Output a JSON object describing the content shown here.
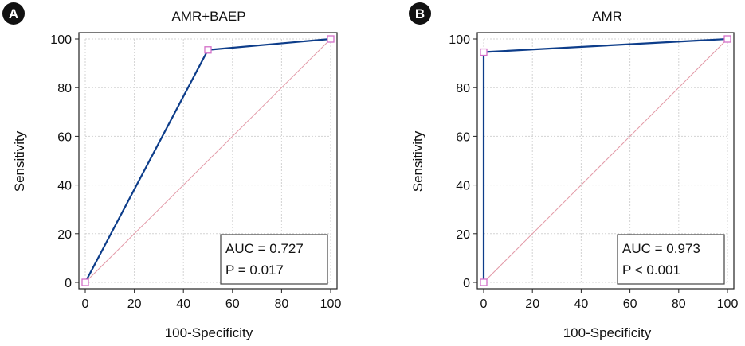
{
  "colors": {
    "roc_line": "#0d3d8a",
    "diagonal": "#e39aa8",
    "marker": "#d46fc8",
    "grid": "#d3d3d3",
    "axis": "#222222",
    "badge": "#111111"
  },
  "chart_data": [
    {
      "panel_label": "A",
      "type": "line",
      "title": "AMR+BAEP",
      "xlabel": "100-Specificity",
      "ylabel": "Sensitivity",
      "xlim": [
        0,
        100
      ],
      "ylim": [
        0,
        100
      ],
      "xticks": [
        "0",
        "20",
        "40",
        "60",
        "80",
        "100"
      ],
      "yticks": [
        "0",
        "20",
        "40",
        "60",
        "80",
        "100"
      ],
      "grid": true,
      "series": [
        {
          "name": "ROC",
          "x": [
            0,
            50,
            100
          ],
          "y": [
            0,
            95.5,
            100
          ]
        }
      ],
      "reference_line": {
        "x": [
          0,
          100
        ],
        "y": [
          0,
          100
        ]
      },
      "stats": {
        "auc": "AUC = 0.727",
        "p": "P = 0.017"
      },
      "stats_position": "bottom-right"
    },
    {
      "panel_label": "B",
      "type": "line",
      "title": "AMR",
      "xlabel": "100-Specificity",
      "ylabel": "Sensitivity",
      "xlim": [
        0,
        100
      ],
      "ylim": [
        0,
        100
      ],
      "xticks": [
        "0",
        "20",
        "40",
        "60",
        "80",
        "100"
      ],
      "yticks": [
        "0",
        "20",
        "40",
        "60",
        "80",
        "100"
      ],
      "grid": true,
      "series": [
        {
          "name": "ROC",
          "x": [
            0,
            0,
            100
          ],
          "y": [
            0,
            94.6,
            100
          ]
        }
      ],
      "reference_line": {
        "x": [
          0,
          100
        ],
        "y": [
          0,
          100
        ]
      },
      "stats": {
        "auc": "AUC = 0.973",
        "p": "P < 0.001"
      },
      "stats_position": "bottom-right"
    }
  ]
}
